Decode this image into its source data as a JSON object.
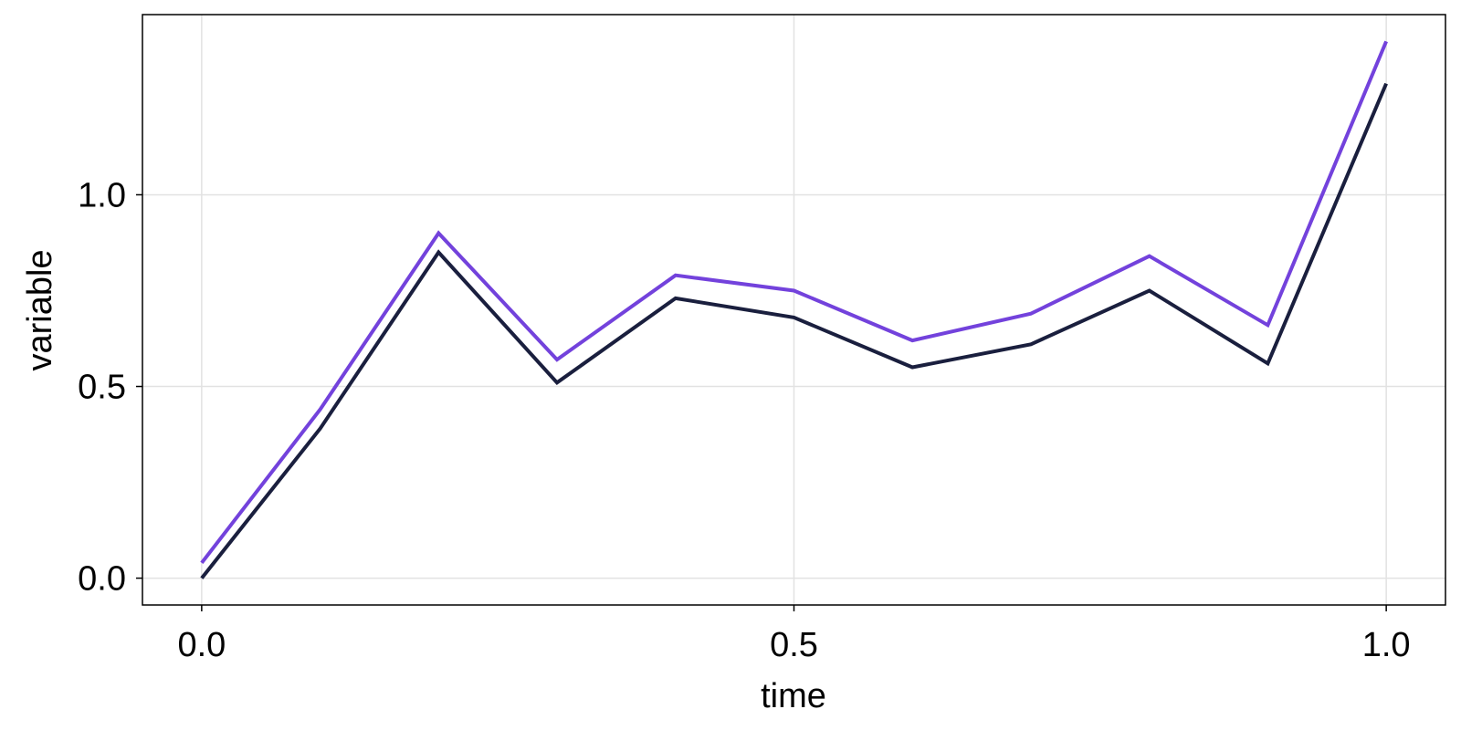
{
  "chart_data": {
    "type": "line",
    "xlabel": "time",
    "ylabel": "variable",
    "xlim": [
      -0.05,
      1.05
    ],
    "ylim": [
      -0.07,
      1.47
    ],
    "x_ticks": [
      0.0,
      0.5,
      1.0
    ],
    "x_tick_labels": [
      "0.0",
      "0.5",
      "1.0"
    ],
    "y_ticks": [
      0.0,
      0.5,
      1.0
    ],
    "y_tick_labels": [
      "0.0",
      "0.5",
      "1.0"
    ],
    "grid": true,
    "x": [
      0.0,
      0.1,
      0.2,
      0.3,
      0.4,
      0.5,
      0.6,
      0.7,
      0.8,
      0.9,
      1.0
    ],
    "series": [
      {
        "color": "#1a1f3e",
        "values": [
          0.0,
          0.39,
          0.85,
          0.51,
          0.73,
          0.68,
          0.55,
          0.61,
          0.75,
          0.56,
          1.29
        ]
      },
      {
        "color": "#7342dc",
        "values": [
          0.04,
          0.44,
          0.9,
          0.57,
          0.79,
          0.75,
          0.62,
          0.69,
          0.84,
          0.66,
          1.4
        ]
      }
    ]
  }
}
